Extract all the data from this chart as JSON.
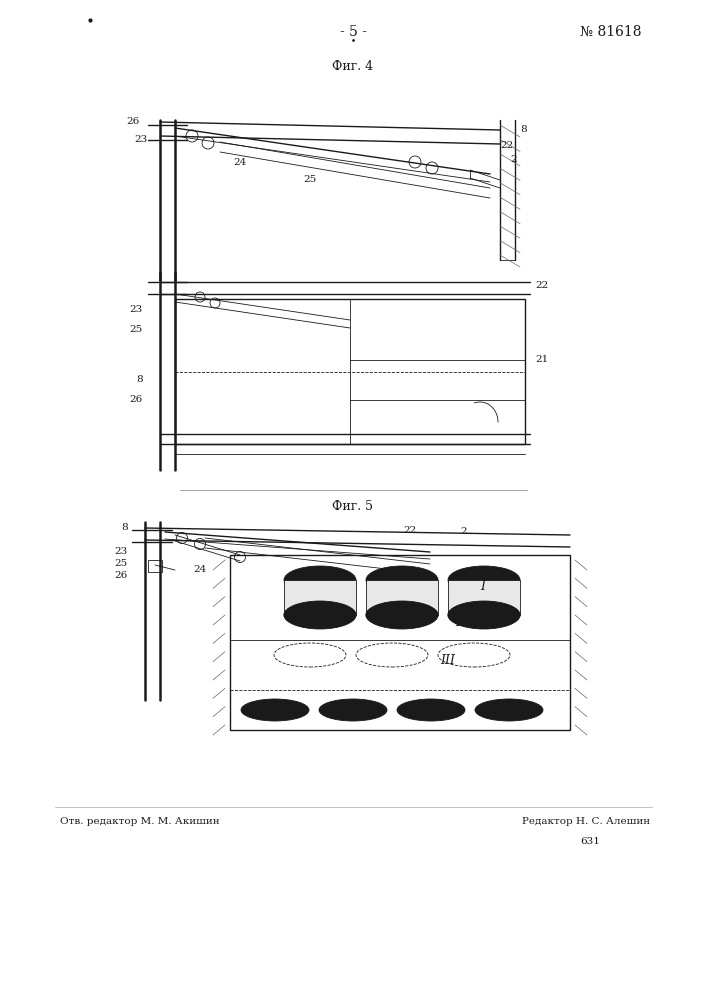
{
  "page_num": "- 5 -",
  "patent_num": "№ 81618",
  "fig4_label": "Фиг. 4",
  "fig5_label": "Фиг. 5",
  "footer_left": "Отв. редактор М. М. Акишин",
  "footer_right": "Редактор Н. С. Алешин",
  "footer_num": "631",
  "bg_color": "#ffffff",
  "line_color": "#1a1a1a"
}
